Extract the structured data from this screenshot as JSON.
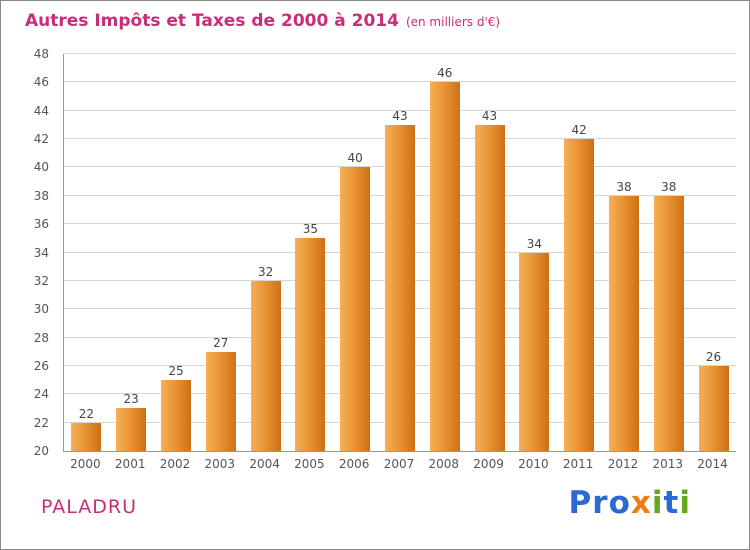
{
  "header": {
    "title": "Autres Impôts et Taxes de 2000 à 2014",
    "subtitle": "(en milliers d'€)"
  },
  "chart_data": {
    "type": "bar",
    "title": "Autres Impôts et Taxes de 2000 à 2014",
    "subtitle": "(en milliers d'€)",
    "categories": [
      "2000",
      "2001",
      "2002",
      "2003",
      "2004",
      "2005",
      "2006",
      "2007",
      "2008",
      "2009",
      "2010",
      "2011",
      "2012",
      "2013",
      "2014"
    ],
    "values": [
      22,
      23,
      25,
      27,
      32,
      35,
      40,
      43,
      46,
      43,
      34,
      42,
      38,
      38,
      26
    ],
    "xlabel": "",
    "ylabel": "",
    "ylim": [
      20,
      48
    ],
    "ytick_step": 2,
    "grid": true,
    "legend": false,
    "bar_color_light": "#f6b055",
    "bar_color_dark": "#cf7014"
  },
  "footer": {
    "location": "PALADRU",
    "logo_letters": [
      {
        "ch": "P",
        "color": "#2a6ad1"
      },
      {
        "ch": "r",
        "color": "#2a6ad1"
      },
      {
        "ch": "o",
        "color": "#2a6ad1"
      },
      {
        "ch": "x",
        "color": "#ef7d13"
      },
      {
        "ch": "i",
        "color": "#6aa51e"
      },
      {
        "ch": "t",
        "color": "#2a6ad1"
      },
      {
        "ch": "i",
        "color": "#6aa51e"
      }
    ]
  },
  "colors": {
    "title": "#c92d7a",
    "axis": "#999999",
    "grid": "#d6d6d6",
    "tick_label": "#555555",
    "value_label": "#454545"
  }
}
